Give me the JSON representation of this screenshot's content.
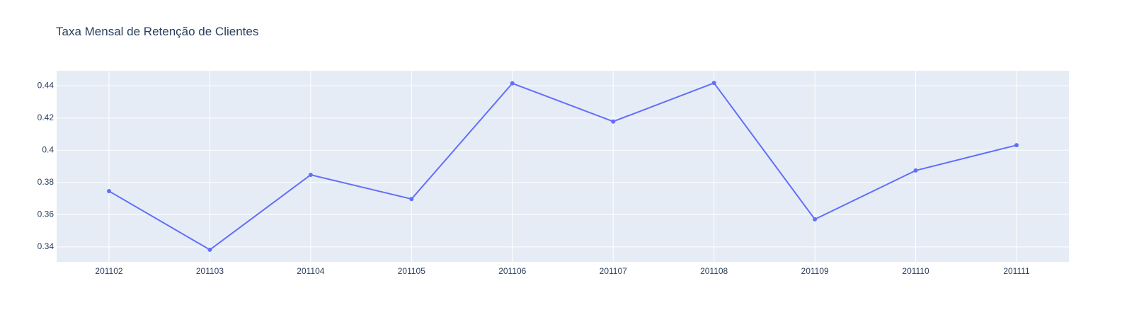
{
  "chart_data": {
    "type": "line",
    "title": "Taxa Mensal de Retenção de Clientes",
    "xlabel": "",
    "ylabel": "",
    "categories": [
      "201102",
      "201103",
      "201104",
      "201105",
      "201106",
      "201107",
      "201108",
      "201109",
      "201110",
      "201111"
    ],
    "series": [
      {
        "values": [
          0.3746,
          0.3382,
          0.3847,
          0.3697,
          0.4415,
          0.4178,
          0.4417,
          0.3571,
          0.3874,
          0.4031
        ]
      }
    ],
    "yticks": [
      0.34,
      0.36,
      0.38,
      0.4,
      0.42,
      0.44
    ],
    "ytick_labels": [
      "0.34",
      "0.36",
      "0.38",
      "0.4",
      "0.42",
      "0.44"
    ],
    "ylim": [
      0.3307,
      0.4493
    ],
    "grid": true,
    "legend": "none",
    "colors": {
      "line": "#636efa",
      "plot_background": "#e5ecf6",
      "grid": "#ffffff",
      "text": "#2a3f5f"
    }
  }
}
